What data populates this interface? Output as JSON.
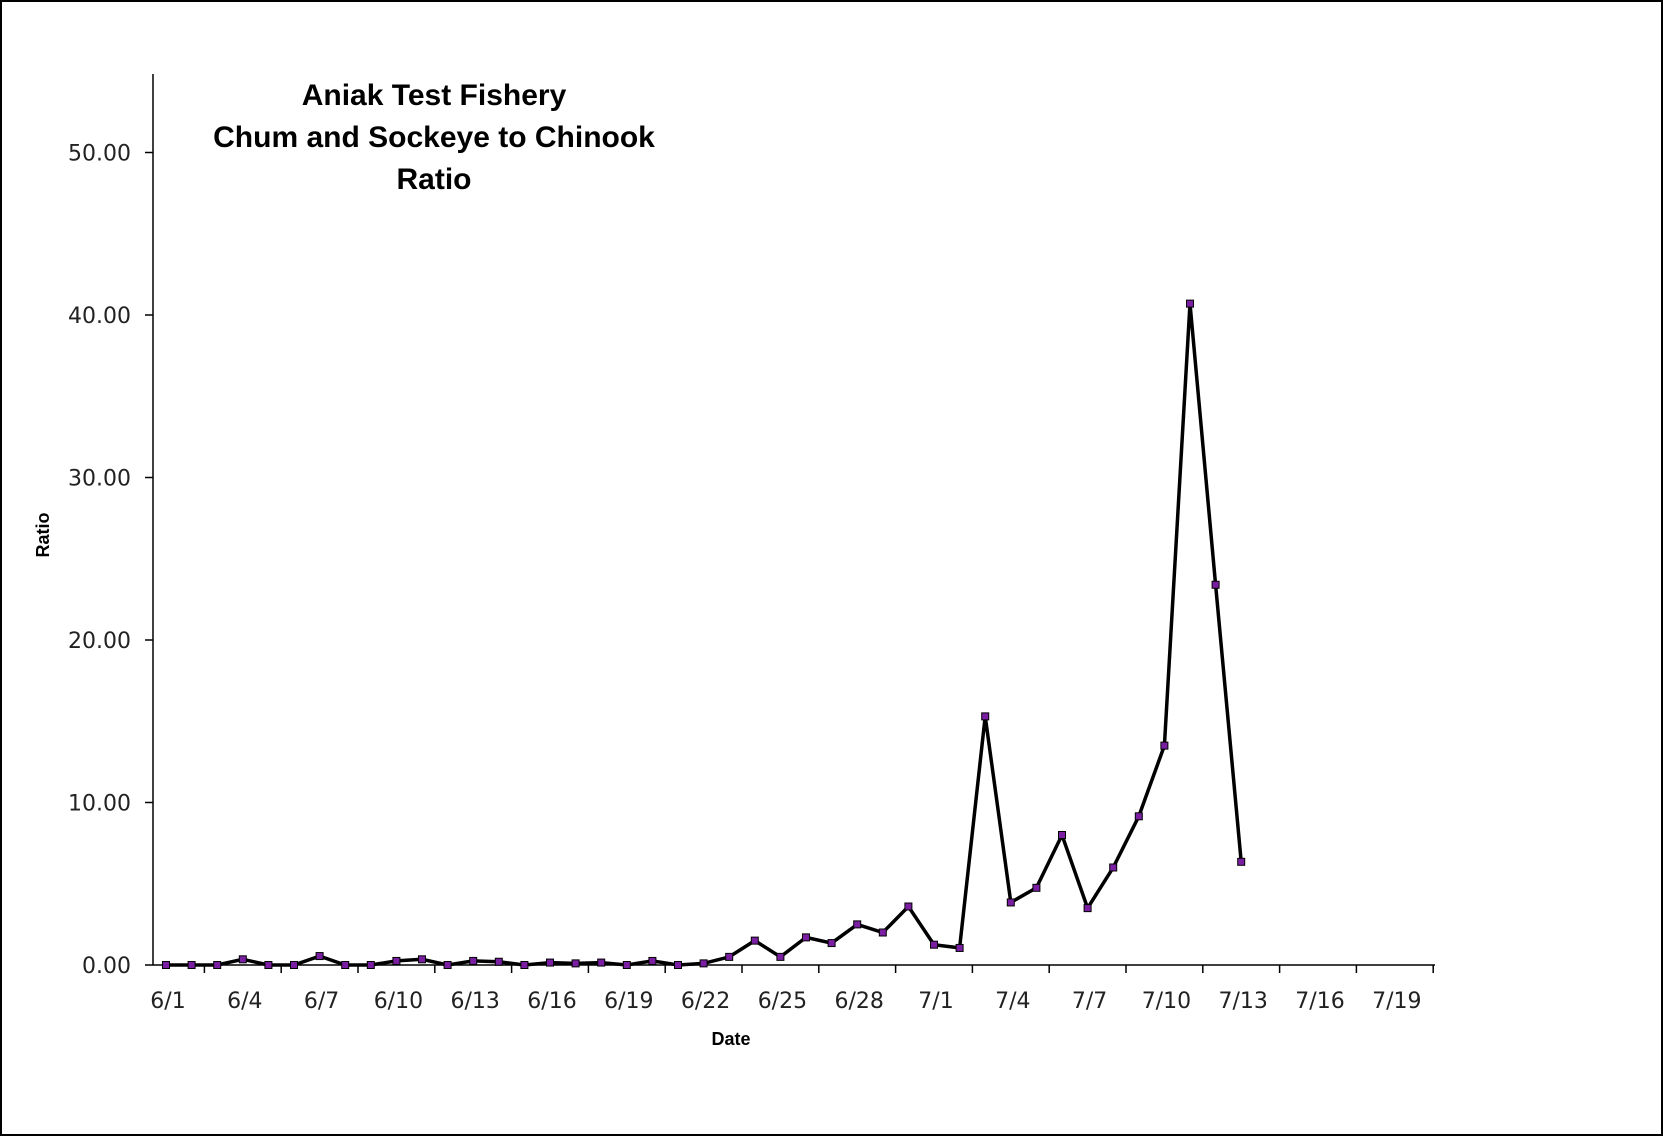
{
  "chart_data": {
    "type": "line",
    "title_lines": [
      "Aniak Test Fishery",
      "Chum and Sockeye to Chinook",
      "Ratio"
    ],
    "xlabel": "Date",
    "ylabel": "Ratio",
    "x_tick_labels": [
      "6/1",
      "6/4",
      "6/7",
      "6/10",
      "6/13",
      "6/16",
      "6/19",
      "6/22",
      "6/25",
      "6/28",
      "7/1",
      "7/4",
      "7/7",
      "7/10",
      "7/13",
      "7/16",
      "7/19"
    ],
    "y_tick_labels": [
      "0.00",
      "10.00",
      "20.00",
      "30.00",
      "40.00",
      "50.00"
    ],
    "ylim": [
      0,
      55
    ],
    "x_range_days": [
      0,
      50
    ],
    "grid": false,
    "legend": "none",
    "line_color": "#000000",
    "marker_color": "#7b1fa2",
    "series": [
      {
        "dates": [
          "6/1",
          "6/2",
          "6/3",
          "6/4",
          "6/5",
          "6/6",
          "6/7",
          "6/8",
          "6/9",
          "6/10",
          "6/11",
          "6/12",
          "6/13",
          "6/14",
          "6/15",
          "6/16",
          "6/17",
          "6/18",
          "6/19",
          "6/20",
          "6/21",
          "6/22",
          "6/23",
          "6/24",
          "6/25",
          "6/26",
          "6/27",
          "6/28",
          "6/29",
          "6/30",
          "7/1",
          "7/2",
          "7/3",
          "7/4",
          "7/5",
          "7/6",
          "7/7",
          "7/8",
          "7/9",
          "7/10",
          "7/11",
          "7/12",
          "7/13"
        ],
        "values": [
          0.0,
          0.0,
          0.0,
          0.35,
          0.0,
          0.0,
          0.55,
          0.0,
          0.0,
          0.25,
          0.35,
          0.0,
          0.25,
          0.2,
          0.0,
          0.15,
          0.1,
          0.15,
          0.0,
          0.25,
          0.0,
          0.1,
          0.5,
          1.5,
          0.5,
          1.7,
          1.35,
          2.5,
          2.0,
          3.6,
          1.25,
          1.05,
          15.3,
          3.85,
          4.75,
          8.0,
          3.5,
          6.0,
          9.15,
          13.5,
          40.7,
          23.4,
          6.35
        ]
      }
    ]
  }
}
